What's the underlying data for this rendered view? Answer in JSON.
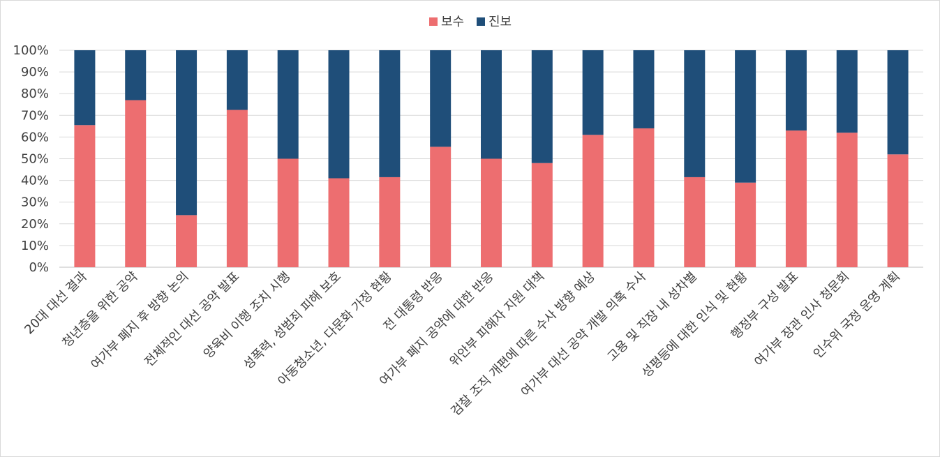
{
  "chart_data": {
    "type": "bar",
    "stacked": true,
    "normalized": true,
    "title": "",
    "xlabel": "",
    "ylabel": "",
    "ylim": [
      0,
      100
    ],
    "yticks": [
      "0%",
      "10%",
      "20%",
      "30%",
      "40%",
      "50%",
      "60%",
      "70%",
      "80%",
      "90%",
      "100%"
    ],
    "legend_position": "top-center",
    "grid": true,
    "categories": [
      "20대 대선 결과",
      "청년층을 위한 공약",
      "여가부 폐지 후 방향 논의",
      "전체적인 대선 공약 발표",
      "양육비 이행 조치 시행",
      "성폭력, 성범죄 피해 보호",
      "아동청소년, 다문화 가정 현황",
      "전 대통령 반응",
      "여가부 폐지 공약에 대한 반응",
      "위안부 피해자 지원 대책",
      "검찰 조직 개편에 따른 수사 방향 예상",
      "여가부 대선 공약 개발 의혹 수사",
      "고용 및 직장 내 성차별",
      "성평등에 대한 인식 및 현황",
      "행정부 구성 발표",
      "여가부 장관 인사 청문회",
      "인수위 국정 운영 계획"
    ],
    "series": [
      {
        "name": "보수",
        "color": "#ed6e70",
        "values": [
          65.5,
          77,
          24,
          72.5,
          50,
          41,
          41.5,
          55.5,
          50,
          48,
          61,
          64,
          41.5,
          39,
          63,
          62,
          52
        ]
      },
      {
        "name": "진보",
        "color": "#1f4e79",
        "values": [
          34.5,
          23,
          76,
          27.5,
          50,
          59,
          58.5,
          44.5,
          50,
          52,
          39,
          36,
          58.5,
          61,
          37,
          38,
          48
        ]
      }
    ]
  }
}
